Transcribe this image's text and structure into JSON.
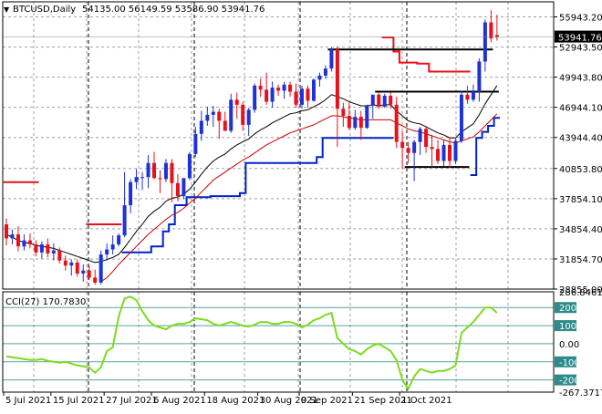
{
  "header": {
    "symbol_label": "BTCUSD,Daily",
    "ohlc_label": "54135.00 56149.59 53586.90 53941.76"
  },
  "indicator": {
    "label": "CCI(27) 170.7830"
  },
  "colors": {
    "bull": "#1f32d6",
    "bear": "#e8101a",
    "ema_fast": "#000000",
    "ema_slow": "#cc0000",
    "donchian_low": "#0022cc",
    "donchian_high": "#e8101a",
    "cci_line": "#7cdc1e",
    "cci_levels": "#2e8b8b",
    "grid": "#a0a0a0"
  },
  "chart_data": [
    {
      "type": "candlestick",
      "title": "BTCUSD,Daily",
      "ylim": [
        28855,
        57443
      ],
      "y_ticks": [
        "55943.20",
        "52943.50",
        "49943.80",
        "46944.10",
        "43944.40",
        "40853.80",
        "37854.10",
        "34854.40",
        "31854.70",
        "28855.00"
      ],
      "x_ticks": [
        "5 Jul 2021",
        "15 Jul 2021",
        "27 Jul 2021",
        "6 Aug 2021",
        "18 Aug 2021",
        "30 Aug 2021",
        "9 Sep 2021",
        "21 Sep 2021",
        "1 Oct 2021"
      ],
      "last_price_label": "53941.76",
      "candles": [
        {
          "o": 35300,
          "h": 35900,
          "l": 33200,
          "c": 33900
        },
        {
          "o": 33900,
          "h": 34800,
          "l": 33300,
          "c": 34300
        },
        {
          "o": 34300,
          "h": 35100,
          "l": 32600,
          "c": 33100
        },
        {
          "o": 33100,
          "h": 34300,
          "l": 32700,
          "c": 33700
        },
        {
          "o": 33700,
          "h": 34400,
          "l": 32900,
          "c": 33300
        },
        {
          "o": 33300,
          "h": 33700,
          "l": 32100,
          "c": 32500
        },
        {
          "o": 32500,
          "h": 33600,
          "l": 31900,
          "c": 33300
        },
        {
          "o": 33300,
          "h": 33900,
          "l": 32000,
          "c": 32400
        },
        {
          "o": 32400,
          "h": 33400,
          "l": 31700,
          "c": 32700
        },
        {
          "o": 32700,
          "h": 33000,
          "l": 31400,
          "c": 31700
        },
        {
          "o": 31700,
          "h": 32200,
          "l": 30700,
          "c": 31200
        },
        {
          "o": 31200,
          "h": 31800,
          "l": 30200,
          "c": 31500
        },
        {
          "o": 31500,
          "h": 31800,
          "l": 30100,
          "c": 30400
        },
        {
          "o": 30400,
          "h": 31300,
          "l": 29600,
          "c": 30700
        },
        {
          "o": 30700,
          "h": 31200,
          "l": 29800,
          "c": 30000
        },
        {
          "o": 30000,
          "h": 30800,
          "l": 29300,
          "c": 29500
        },
        {
          "o": 29500,
          "h": 32700,
          "l": 29300,
          "c": 32300
        },
        {
          "o": 32300,
          "h": 33400,
          "l": 31700,
          "c": 32800
        },
        {
          "o": 32800,
          "h": 34200,
          "l": 32300,
          "c": 33300
        },
        {
          "o": 33300,
          "h": 34400,
          "l": 33100,
          "c": 34200
        },
        {
          "o": 34200,
          "h": 40500,
          "l": 34000,
          "c": 37200
        },
        {
          "o": 37200,
          "h": 39800,
          "l": 36400,
          "c": 39500
        },
        {
          "o": 39500,
          "h": 40800,
          "l": 38800,
          "c": 40000
        },
        {
          "o": 40000,
          "h": 40500,
          "l": 38700,
          "c": 40000
        },
        {
          "o": 40000,
          "h": 42200,
          "l": 38900,
          "c": 41400
        },
        {
          "o": 41400,
          "h": 42500,
          "l": 39800,
          "c": 39900
        },
        {
          "o": 39900,
          "h": 40700,
          "l": 38400,
          "c": 39800
        },
        {
          "o": 39800,
          "h": 41800,
          "l": 39500,
          "c": 41400
        },
        {
          "o": 41400,
          "h": 41800,
          "l": 37500,
          "c": 39400
        },
        {
          "o": 39400,
          "h": 40300,
          "l": 37600,
          "c": 38100
        },
        {
          "o": 38100,
          "h": 39900,
          "l": 37800,
          "c": 39900
        },
        {
          "o": 39900,
          "h": 42500,
          "l": 39700,
          "c": 42300
        },
        {
          "o": 42300,
          "h": 45000,
          "l": 42000,
          "c": 44300
        },
        {
          "o": 44300,
          "h": 46600,
          "l": 43600,
          "c": 45600
        },
        {
          "o": 45600,
          "h": 47000,
          "l": 45100,
          "c": 46200
        },
        {
          "o": 46200,
          "h": 47100,
          "l": 45000,
          "c": 46500
        },
        {
          "o": 46500,
          "h": 46800,
          "l": 43800,
          "c": 45600
        },
        {
          "o": 45600,
          "h": 46500,
          "l": 44700,
          "c": 44600
        },
        {
          "o": 44600,
          "h": 48300,
          "l": 44400,
          "c": 47700
        },
        {
          "o": 47700,
          "h": 48400,
          "l": 45800,
          "c": 47200
        },
        {
          "o": 47200,
          "h": 47500,
          "l": 44600,
          "c": 45200
        },
        {
          "o": 45200,
          "h": 46900,
          "l": 44100,
          "c": 46700
        },
        {
          "o": 46700,
          "h": 49300,
          "l": 46400,
          "c": 49100
        },
        {
          "o": 49100,
          "h": 49800,
          "l": 48000,
          "c": 48700
        },
        {
          "o": 48700,
          "h": 50400,
          "l": 47200,
          "c": 47500
        },
        {
          "o": 47500,
          "h": 49500,
          "l": 46900,
          "c": 48900
        },
        {
          "o": 48900,
          "h": 49200,
          "l": 48100,
          "c": 48600
        },
        {
          "o": 48600,
          "h": 49500,
          "l": 47800,
          "c": 49200
        },
        {
          "o": 49200,
          "h": 49500,
          "l": 48000,
          "c": 48500
        },
        {
          "o": 48500,
          "h": 49300,
          "l": 46900,
          "c": 47200
        },
        {
          "o": 47200,
          "h": 49100,
          "l": 46800,
          "c": 48800
        },
        {
          "o": 48800,
          "h": 49100,
          "l": 46900,
          "c": 47600
        },
        {
          "o": 47600,
          "h": 49800,
          "l": 47500,
          "c": 49700
        },
        {
          "o": 49700,
          "h": 50400,
          "l": 49000,
          "c": 50100
        },
        {
          "o": 50100,
          "h": 51100,
          "l": 49800,
          "c": 50800
        },
        {
          "o": 50800,
          "h": 52900,
          "l": 50500,
          "c": 52700
        },
        {
          "o": 52700,
          "h": 53000,
          "l": 43000,
          "c": 46800
        },
        {
          "o": 46800,
          "h": 47400,
          "l": 45000,
          "c": 46100
        },
        {
          "o": 46100,
          "h": 47400,
          "l": 44700,
          "c": 44900
        },
        {
          "o": 44900,
          "h": 46700,
          "l": 44700,
          "c": 46000
        },
        {
          "o": 46000,
          "h": 46600,
          "l": 43700,
          "c": 44900
        },
        {
          "o": 44900,
          "h": 47200,
          "l": 44800,
          "c": 47100
        },
        {
          "o": 47100,
          "h": 48200,
          "l": 45800,
          "c": 48200
        },
        {
          "o": 48200,
          "h": 48400,
          "l": 46800,
          "c": 47000
        },
        {
          "o": 47000,
          "h": 48300,
          "l": 46900,
          "c": 48100
        },
        {
          "o": 48100,
          "h": 48400,
          "l": 46800,
          "c": 47200
        },
        {
          "o": 47200,
          "h": 48000,
          "l": 42900,
          "c": 43500
        },
        {
          "o": 43500,
          "h": 44600,
          "l": 40800,
          "c": 42900
        },
        {
          "o": 42900,
          "h": 43500,
          "l": 41400,
          "c": 42400
        },
        {
          "o": 42400,
          "h": 43700,
          "l": 39600,
          "c": 43500
        },
        {
          "o": 43500,
          "h": 45000,
          "l": 42200,
          "c": 44800
        },
        {
          "o": 44800,
          "h": 45100,
          "l": 42400,
          "c": 43000
        },
        {
          "o": 43000,
          "h": 44200,
          "l": 41000,
          "c": 42800
        },
        {
          "o": 42800,
          "h": 43700,
          "l": 41300,
          "c": 41600
        },
        {
          "o": 41600,
          "h": 43700,
          "l": 41100,
          "c": 43200
        },
        {
          "o": 43200,
          "h": 44000,
          "l": 40900,
          "c": 41600
        },
        {
          "o": 41600,
          "h": 43800,
          "l": 41300,
          "c": 43600
        },
        {
          "o": 43600,
          "h": 48600,
          "l": 43400,
          "c": 48200
        },
        {
          "o": 48200,
          "h": 49100,
          "l": 47300,
          "c": 47700
        },
        {
          "o": 47700,
          "h": 49200,
          "l": 47500,
          "c": 48500
        },
        {
          "o": 48500,
          "h": 51800,
          "l": 47500,
          "c": 51500
        },
        {
          "o": 51500,
          "h": 55700,
          "l": 50500,
          "c": 55400
        },
        {
          "o": 55400,
          "h": 56600,
          "l": 53400,
          "c": 53800
        },
        {
          "o": 54135,
          "h": 56150,
          "l": 53587,
          "c": 53942
        }
      ],
      "ema_fast": [
        34300,
        34000,
        33700,
        33500,
        33400,
        33200,
        33100,
        33000,
        32900,
        32700,
        32500,
        32300,
        32100,
        31900,
        31700,
        31500,
        31600,
        31800,
        32000,
        32300,
        33000,
        33800,
        34600,
        35300,
        36100,
        36600,
        37000,
        37600,
        37900,
        38000,
        38300,
        38800,
        39500,
        40300,
        41000,
        41600,
        42000,
        42300,
        42800,
        43200,
        43500,
        43800,
        44300,
        44700,
        45000,
        45400,
        45700,
        46000,
        46300,
        46400,
        46600,
        46700,
        47000,
        47300,
        47700,
        48200,
        48000,
        47800,
        47500,
        47300,
        47100,
        47100,
        47200,
        47100,
        47200,
        47200,
        46600,
        46100,
        45600,
        45400,
        45300,
        45000,
        44700,
        44400,
        44200,
        43900,
        43900,
        44500,
        44900,
        45300,
        46200,
        47300,
        48200,
        49100
      ],
      "ema_slow": [
        null,
        null,
        null,
        null,
        null,
        null,
        null,
        null,
        null,
        null,
        null,
        null,
        null,
        null,
        null,
        null,
        29600,
        30000,
        30600,
        31300,
        31900,
        32500,
        33100,
        33700,
        34300,
        34800,
        35300,
        35800,
        36200,
        36500,
        36900,
        37400,
        37900,
        38500,
        39100,
        39700,
        40100,
        40500,
        40900,
        41300,
        41700,
        42000,
        42400,
        42800,
        43200,
        43500,
        43800,
        44100,
        44400,
        44600,
        44800,
        45000,
        45200,
        45500,
        45800,
        46100,
        46100,
        46000,
        45900,
        45800,
        45700,
        45700,
        45700,
        45700,
        45700,
        45700,
        45400,
        45100,
        44800,
        44600,
        44500,
        44300,
        44100,
        43900,
        43700,
        43500,
        43400,
        43600,
        43800,
        44000,
        44500,
        45100,
        45700,
        46300
      ],
      "donchian_low": [
        39500,
        39500,
        39500,
        39500,
        39500,
        39500,
        null,
        null,
        null,
        null,
        null,
        null,
        null,
        null,
        35300,
        35300,
        35300,
        35300,
        35300,
        35300,
        null,
        null,
        null,
        null,
        null,
        null,
        null,
        null,
        null,
        null,
        null,
        null,
        null,
        null,
        null,
        null,
        null,
        null,
        null,
        null,
        null,
        null,
        null,
        null,
        null,
        null,
        null,
        null,
        null,
        null,
        null,
        null,
        null,
        null,
        null,
        null,
        null,
        null,
        null,
        null,
        null,
        null,
        null,
        null,
        null,
        null,
        null,
        null,
        null,
        null,
        null,
        null,
        null,
        null,
        null,
        null,
        null,
        null,
        null,
        null,
        null,
        null,
        null,
        null
      ],
      "support_line": [
        null,
        null,
        null,
        null,
        null,
        null,
        null,
        null,
        null,
        null,
        null,
        null,
        null,
        null,
        null,
        null,
        null,
        null,
        null,
        null,
        32500,
        32500,
        32500,
        32500,
        32500,
        33100,
        33100,
        34600,
        35300,
        37200,
        37200,
        38000,
        38000,
        38000,
        38000,
        38100,
        38100,
        38100,
        38100,
        38100,
        38400,
        41400,
        41400,
        41400,
        41400,
        41400,
        41400,
        41400,
        41400,
        41400,
        41400,
        41400,
        41400,
        42000,
        43900,
        43900,
        43900,
        43900,
        43900,
        43900,
        43900,
        43900,
        43900,
        43900,
        43900,
        43900,
        null,
        null,
        null,
        null,
        null,
        null,
        null,
        null,
        null,
        null,
        null,
        null,
        null,
        40200,
        43900,
        44500,
        45100,
        45900
      ],
      "resistance_line": [
        null,
        null,
        null,
        null,
        null,
        null,
        null,
        null,
        null,
        null,
        null,
        null,
        null,
        null,
        null,
        null,
        null,
        null,
        null,
        null,
        null,
        null,
        null,
        null,
        null,
        null,
        null,
        null,
        null,
        null,
        null,
        null,
        null,
        null,
        null,
        null,
        null,
        null,
        null,
        null,
        null,
        null,
        null,
        null,
        null,
        null,
        null,
        null,
        null,
        null,
        null,
        null,
        null,
        null,
        null,
        null,
        null,
        null,
        null,
        null,
        null,
        null,
        null,
        null,
        53900,
        53900,
        52500,
        51400,
        51400,
        51400,
        51300,
        51300,
        50500,
        50500,
        50500,
        50500,
        50500,
        50500,
        50500,
        null,
        null,
        null,
        null,
        null
      ]
    },
    {
      "type": "line",
      "title": "CCI(27) 170.7830",
      "ylim": [
        -267.3717,
        286.8461
      ],
      "y_ticks": [
        "286.8461",
        "200",
        "100",
        "0.00",
        "-100",
        "-200",
        "-267.3717"
      ],
      "levels": [
        200,
        100,
        0,
        -100,
        -200
      ],
      "values": [
        -70,
        -75,
        -80,
        -85,
        -90,
        -90,
        -85,
        -95,
        -100,
        -105,
        -100,
        -110,
        -120,
        -125,
        -130,
        -160,
        -130,
        -40,
        -20,
        150,
        250,
        260,
        240,
        180,
        130,
        100,
        90,
        80,
        100,
        110,
        110,
        120,
        140,
        135,
        130,
        110,
        100,
        110,
        120,
        110,
        100,
        95,
        105,
        120,
        120,
        110,
        110,
        120,
        120,
        110,
        90,
        105,
        130,
        140,
        160,
        170,
        30,
        0,
        -30,
        -40,
        -60,
        -30,
        -10,
        0,
        -20,
        -40,
        -90,
        -200,
        -250,
        -180,
        -140,
        -150,
        -160,
        -150,
        -150,
        -140,
        -120,
        60,
        90,
        120,
        160,
        200,
        200,
        171
      ]
    }
  ]
}
